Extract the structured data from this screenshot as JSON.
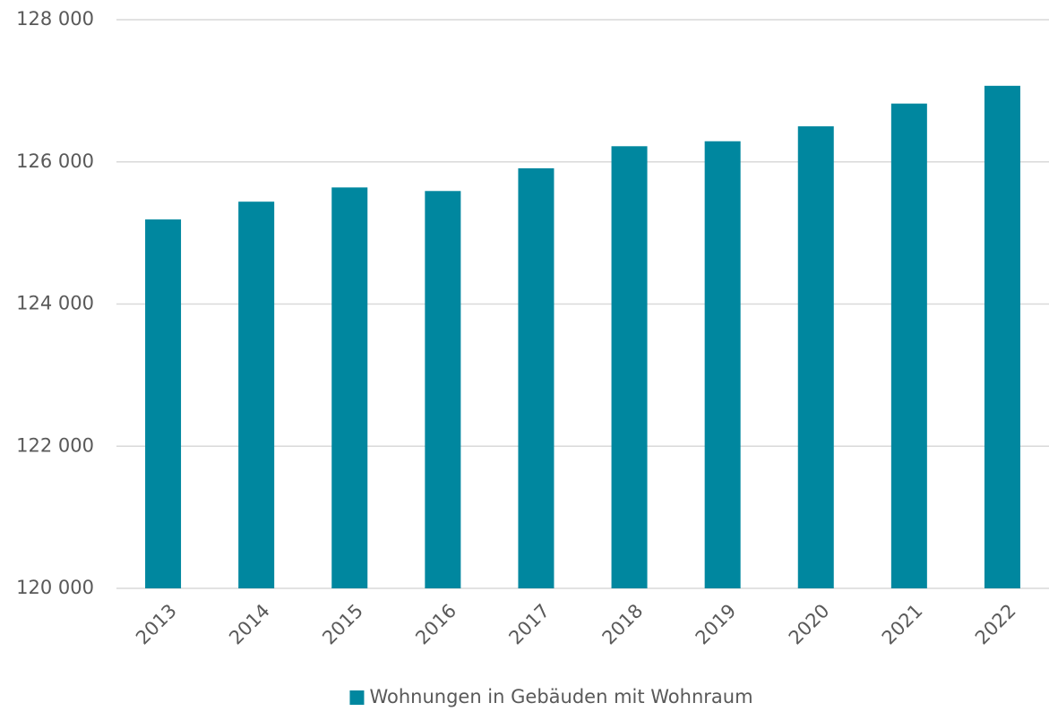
{
  "chart_data": {
    "type": "bar",
    "categories": [
      "2013",
      "2014",
      "2015",
      "2016",
      "2017",
      "2018",
      "2019",
      "2020",
      "2021",
      "2022"
    ],
    "series": [
      {
        "name": "Wohnungen in Gebäuden mit Wohnraum",
        "color": "#00879f",
        "values": [
          125190,
          125440,
          125640,
          125590,
          125910,
          126220,
          126290,
          126500,
          126820,
          127070
        ]
      }
    ],
    "ylim": [
      120000,
      128000
    ],
    "yticks": [
      {
        "value": 120000,
        "label": "120 000"
      },
      {
        "value": 122000,
        "label": "122 000"
      },
      {
        "value": 124000,
        "label": "124 000"
      },
      {
        "value": 126000,
        "label": "126 000"
      },
      {
        "value": 128000,
        "label": "128 000"
      }
    ],
    "grid": true,
    "legend": "bottom"
  }
}
